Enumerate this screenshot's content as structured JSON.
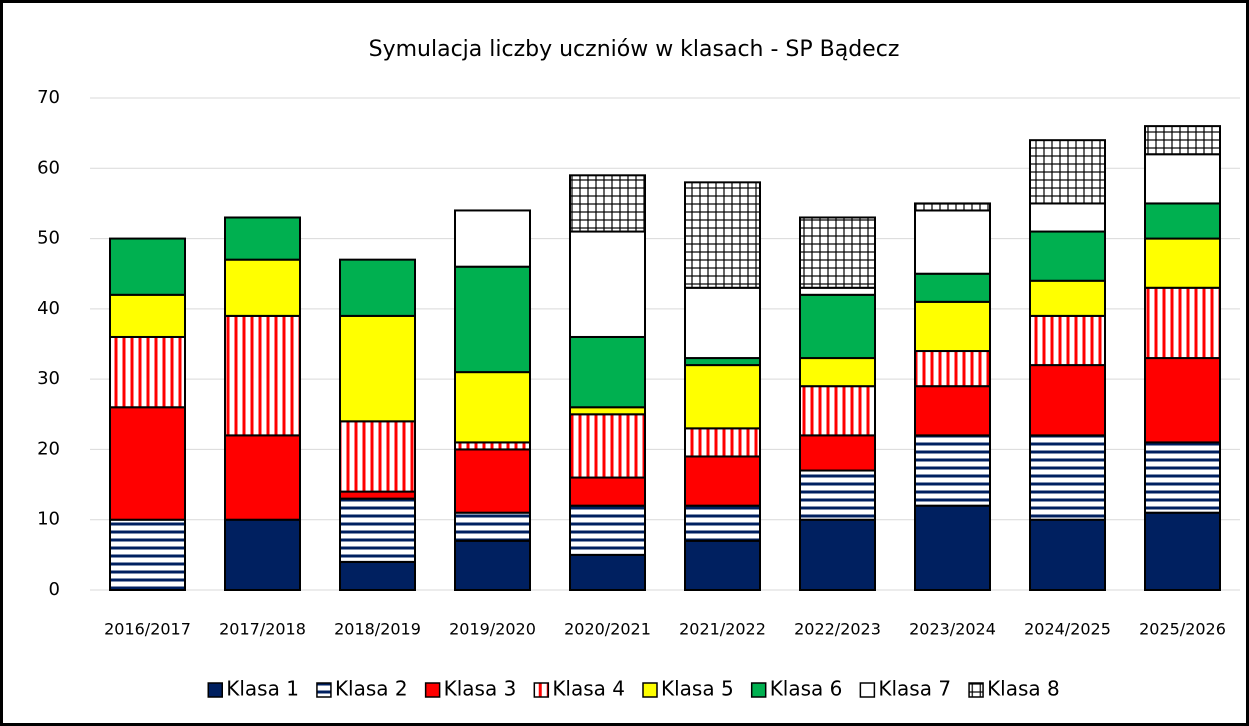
{
  "chart_data": {
    "type": "stacked-bar",
    "title": "Symulacja liczby uczniów w klasach - SP Bądecz",
    "categories": [
      "2016/2017",
      "2017/2018",
      "2018/2019",
      "2019/2020",
      "2020/2021",
      "2021/2022",
      "2022/2023",
      "2023/2024",
      "2024/2025",
      "2025/2026"
    ],
    "series": [
      {
        "name": "Klasa 1",
        "color": "#002060",
        "values": [
          0,
          10,
          4,
          7,
          5,
          7,
          10,
          12,
          10,
          11
        ]
      },
      {
        "name": "Klasa 2",
        "color": "#002060",
        "pattern": "horizontal",
        "values": [
          10,
          0,
          9,
          4,
          7,
          5,
          7,
          10,
          12,
          10
        ]
      },
      {
        "name": "Klasa 3",
        "color": "#ff0000",
        "values": [
          16,
          12,
          1,
          9,
          4,
          7,
          5,
          7,
          10,
          12
        ]
      },
      {
        "name": "Klasa 4",
        "color": "#ff0000",
        "pattern": "vertical",
        "values": [
          10,
          17,
          10,
          1,
          9,
          4,
          7,
          5,
          7,
          10
        ]
      },
      {
        "name": "Klasa 5",
        "color": "#ffff00",
        "values": [
          6,
          8,
          15,
          10,
          1,
          9,
          4,
          7,
          5,
          7
        ]
      },
      {
        "name": "Klasa 6",
        "color": "#00b050",
        "values": [
          8,
          6,
          8,
          15,
          10,
          1,
          9,
          4,
          7,
          5
        ]
      },
      {
        "name": "Klasa 7",
        "color": "#ffffff",
        "values": [
          0,
          0,
          0,
          8,
          15,
          10,
          1,
          9,
          4,
          7
        ]
      },
      {
        "name": "Klasa 8",
        "color": "#000000",
        "pattern": "grid",
        "values": [
          0,
          0,
          0,
          0,
          8,
          15,
          10,
          1,
          9,
          4
        ]
      }
    ],
    "ylim": [
      0,
      70
    ],
    "yticks": [
      0,
      10,
      20,
      30,
      40,
      50,
      60,
      70
    ],
    "grid": true,
    "legend": "bottom"
  }
}
